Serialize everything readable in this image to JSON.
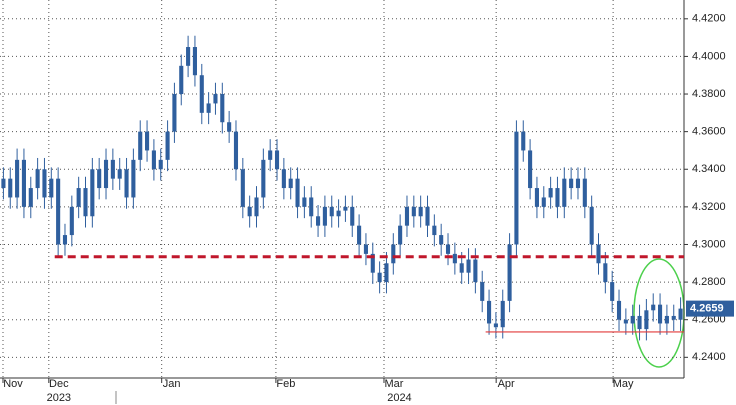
{
  "chart_data": {
    "type": "candlestick",
    "color": "#2f5f9e",
    "ylim": [
      4.229,
      4.43
    ],
    "yticks": [
      {
        "value": 4.24,
        "label": "4.2400"
      },
      {
        "value": 4.26,
        "label": "4.2600"
      },
      {
        "value": 4.28,
        "label": "4.2800"
      },
      {
        "value": 4.3,
        "label": "4.3000"
      },
      {
        "value": 4.32,
        "label": "4.3200"
      },
      {
        "value": 4.34,
        "label": "4.3400"
      },
      {
        "value": 4.36,
        "label": "4.3600"
      },
      {
        "value": 4.38,
        "label": "4.3800"
      },
      {
        "value": 4.4,
        "label": "4.4000"
      },
      {
        "value": 4.42,
        "label": "4.4200"
      }
    ],
    "xlim": [
      -0.5,
      99.5
    ],
    "xticks": [
      {
        "value": 1.4,
        "label": "Nov"
      },
      {
        "value": 8.1,
        "label": "Dec"
      },
      {
        "value": 24.6,
        "label": "Jan"
      },
      {
        "value": 41.3,
        "label": "Feb"
      },
      {
        "value": 57.1,
        "label": "Mar"
      },
      {
        "value": 73.5,
        "label": "Apr"
      },
      {
        "value": 90.6,
        "label": "May"
      }
    ],
    "year_labels": [
      {
        "value": 8.1,
        "label": "2023"
      },
      {
        "value": 57.9,
        "label": "2024"
      }
    ],
    "grid": true,
    "lines": [
      {
        "value": 4.2935,
        "from": 7.5,
        "color": "#c0172b",
        "style": "dashed"
      },
      {
        "value": 4.2535,
        "from": 70.5,
        "color": "#e23a3a",
        "style": "solid"
      }
    ],
    "open": [
      4.33,
      4.335,
      4.325,
      4.345,
      4.32,
      4.33,
      4.34,
      4.325,
      4.335,
      4.3,
      4.305,
      4.32,
      4.33,
      4.315,
      4.34,
      4.33,
      4.345,
      4.335,
      4.34,
      4.325,
      4.345,
      4.36,
      4.35,
      4.34,
      4.345,
      4.36,
      4.38,
      4.395,
      4.405,
      4.39,
      4.37,
      4.375,
      4.38,
      4.365,
      4.36,
      4.34,
      4.32,
      4.315,
      4.325,
      4.345,
      4.35,
      4.34,
      4.33,
      4.335,
      4.32,
      4.325,
      4.315,
      4.31,
      4.32,
      4.315,
      4.318,
      4.32,
      4.31,
      4.3,
      4.295,
      4.285,
      4.28,
      4.29,
      4.3,
      4.31,
      4.32,
      4.315,
      4.32,
      4.31,
      4.305,
      4.3,
      4.295,
      4.29,
      4.285,
      4.292,
      4.28,
      4.27,
      4.258,
      4.256,
      4.27,
      4.3,
      4.36,
      4.35,
      4.33,
      4.32,
      4.325,
      4.33,
      4.32,
      4.335,
      4.33,
      4.335,
      4.32,
      4.3,
      4.29,
      4.28,
      4.27,
      4.26,
      4.258,
      4.262,
      4.255,
      4.265,
      4.268,
      4.258,
      4.262,
      4.26
    ],
    "high": [
      4.341,
      4.341,
      4.351,
      4.351,
      4.336,
      4.346,
      4.346,
      4.341,
      4.341,
      4.311,
      4.326,
      4.336,
      4.336,
      4.346,
      4.346,
      4.351,
      4.351,
      4.346,
      4.346,
      4.351,
      4.366,
      4.366,
      4.356,
      4.351,
      4.366,
      4.386,
      4.401,
      4.411,
      4.411,
      4.396,
      4.381,
      4.386,
      4.386,
      4.371,
      4.366,
      4.346,
      4.326,
      4.331,
      4.351,
      4.356,
      4.356,
      4.346,
      4.341,
      4.341,
      4.331,
      4.331,
      4.321,
      4.326,
      4.326,
      4.324,
      4.326,
      4.326,
      4.316,
      4.306,
      4.301,
      4.291,
      4.296,
      4.306,
      4.316,
      4.326,
      4.326,
      4.326,
      4.326,
      4.316,
      4.311,
      4.306,
      4.301,
      4.296,
      4.298,
      4.298,
      4.286,
      4.276,
      4.264,
      4.276,
      4.306,
      4.366,
      4.366,
      4.356,
      4.336,
      4.331,
      4.336,
      4.336,
      4.341,
      4.341,
      4.341,
      4.341,
      4.326,
      4.306,
      4.296,
      4.286,
      4.276,
      4.266,
      4.268,
      4.268,
      4.271,
      4.274,
      4.274,
      4.268,
      4.268,
      4.2719
    ],
    "low": [
      4.324,
      4.319,
      4.319,
      4.314,
      4.314,
      4.324,
      4.319,
      4.319,
      4.294,
      4.294,
      4.299,
      4.314,
      4.309,
      4.309,
      4.324,
      4.324,
      4.329,
      4.329,
      4.319,
      4.319,
      4.339,
      4.344,
      4.334,
      4.334,
      4.339,
      4.354,
      4.374,
      4.389,
      4.384,
      4.364,
      4.364,
      4.369,
      4.359,
      4.354,
      4.334,
      4.314,
      4.309,
      4.309,
      4.319,
      4.339,
      4.334,
      4.324,
      4.324,
      4.314,
      4.314,
      4.309,
      4.304,
      4.304,
      4.309,
      4.309,
      4.312,
      4.304,
      4.294,
      4.289,
      4.279,
      4.274,
      4.274,
      4.284,
      4.294,
      4.304,
      4.309,
      4.309,
      4.304,
      4.299,
      4.294,
      4.289,
      4.284,
      4.279,
      4.279,
      4.274,
      4.264,
      4.252,
      4.25,
      4.25,
      4.264,
      4.294,
      4.344,
      4.324,
      4.314,
      4.314,
      4.319,
      4.314,
      4.314,
      4.324,
      4.324,
      4.314,
      4.294,
      4.284,
      4.274,
      4.264,
      4.254,
      4.252,
      4.252,
      4.249,
      4.249,
      4.259,
      4.252,
      4.252,
      4.254,
      4.254
    ],
    "close": [
      4.335,
      4.325,
      4.345,
      4.32,
      4.33,
      4.34,
      4.325,
      4.335,
      4.3,
      4.305,
      4.32,
      4.33,
      4.315,
      4.34,
      4.33,
      4.345,
      4.335,
      4.34,
      4.325,
      4.345,
      4.36,
      4.35,
      4.34,
      4.345,
      4.36,
      4.38,
      4.395,
      4.405,
      4.39,
      4.37,
      4.375,
      4.38,
      4.365,
      4.36,
      4.34,
      4.32,
      4.315,
      4.325,
      4.345,
      4.35,
      4.34,
      4.33,
      4.335,
      4.32,
      4.325,
      4.315,
      4.31,
      4.32,
      4.315,
      4.318,
      4.32,
      4.31,
      4.3,
      4.295,
      4.285,
      4.28,
      4.29,
      4.3,
      4.31,
      4.32,
      4.315,
      4.32,
      4.31,
      4.305,
      4.3,
      4.295,
      4.29,
      4.285,
      4.292,
      4.28,
      4.27,
      4.258,
      4.256,
      4.27,
      4.3,
      4.36,
      4.35,
      4.33,
      4.32,
      4.325,
      4.33,
      4.32,
      4.335,
      4.33,
      4.335,
      4.32,
      4.3,
      4.29,
      4.28,
      4.27,
      4.26,
      4.258,
      4.262,
      4.255,
      4.265,
      4.268,
      4.258,
      4.262,
      4.26,
      4.2659
    ]
  }
}
